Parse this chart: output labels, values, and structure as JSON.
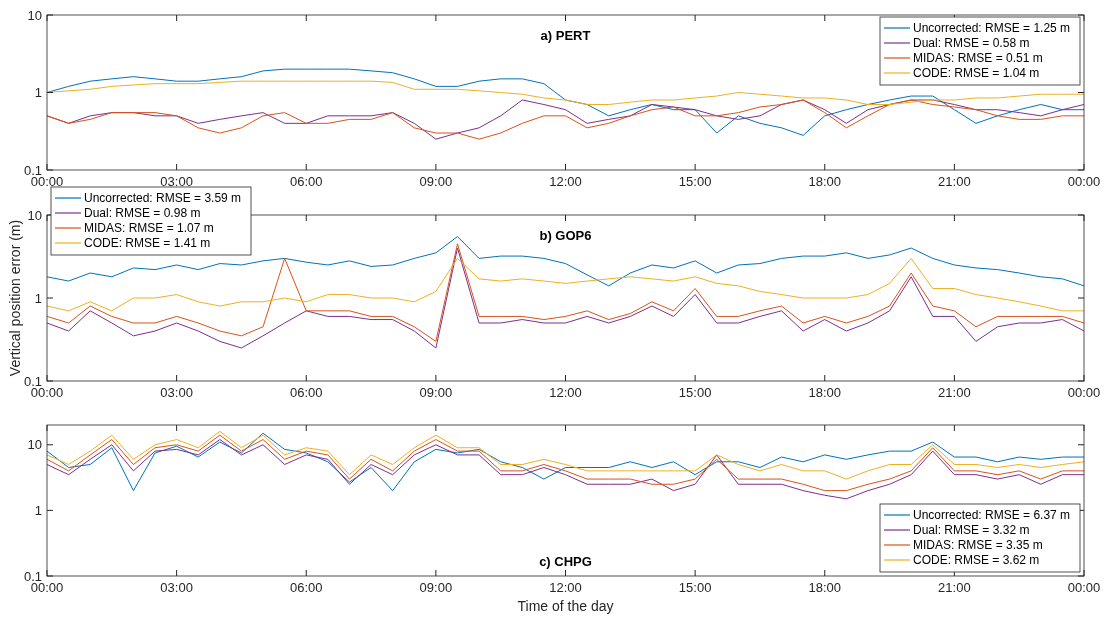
{
  "chart_data": [
    {
      "type": "line",
      "title": "a) PERT",
      "log": true,
      "legend": "top right",
      "xlim": [
        0,
        24
      ],
      "ylim": [
        0.1,
        10
      ],
      "xticks": [
        {
          "value": 0,
          "label": "00:00"
        },
        {
          "value": 3,
          "label": "03:00"
        },
        {
          "value": 6,
          "label": "06:00"
        },
        {
          "value": 9,
          "label": "09:00"
        },
        {
          "value": 12,
          "label": "12:00"
        },
        {
          "value": 15,
          "label": "15:00"
        },
        {
          "value": 18,
          "label": "18:00"
        },
        {
          "value": 21,
          "label": "21:00"
        },
        {
          "value": 24,
          "label": "00:00"
        }
      ],
      "yticks": [
        0.1,
        1,
        10
      ],
      "x": [
        0,
        0.5,
        1,
        1.5,
        2,
        2.5,
        3,
        3.5,
        4,
        4.5,
        5,
        5.5,
        6,
        6.5,
        7,
        7.5,
        8,
        8.5,
        9,
        9.5,
        10,
        10.5,
        11,
        11.5,
        12,
        12.5,
        13,
        13.5,
        14,
        14.5,
        15,
        15.5,
        16,
        16.5,
        17,
        17.5,
        18,
        18.5,
        19,
        19.5,
        20,
        20.5,
        21,
        21.5,
        22,
        22.5,
        23,
        23.5,
        24
      ],
      "series": [
        {
          "name": "Uncorrected: RMSE = 1.25 m",
          "color": "#0072bd",
          "values": [
            1.0,
            1.2,
            1.4,
            1.5,
            1.6,
            1.5,
            1.4,
            1.4,
            1.5,
            1.6,
            1.9,
            2.0,
            2.0,
            2.0,
            2.0,
            1.9,
            1.8,
            1.5,
            1.2,
            1.2,
            1.4,
            1.5,
            1.5,
            1.3,
            0.8,
            0.7,
            0.5,
            0.6,
            0.7,
            0.6,
            0.6,
            0.3,
            0.5,
            0.4,
            0.35,
            0.28,
            0.5,
            0.6,
            0.7,
            0.8,
            0.9,
            0.9,
            0.6,
            0.4,
            0.5,
            0.6,
            0.7,
            0.6,
            0.6
          ]
        },
        {
          "name": "Dual: RMSE = 0.58 m",
          "color": "#7e2f8e",
          "values": [
            0.5,
            0.4,
            0.5,
            0.55,
            0.55,
            0.5,
            0.5,
            0.4,
            0.45,
            0.5,
            0.55,
            0.4,
            0.4,
            0.5,
            0.5,
            0.5,
            0.55,
            0.4,
            0.25,
            0.3,
            0.35,
            0.5,
            0.8,
            0.7,
            0.6,
            0.4,
            0.45,
            0.5,
            0.7,
            0.65,
            0.6,
            0.5,
            0.45,
            0.5,
            0.7,
            0.8,
            0.6,
            0.4,
            0.6,
            0.7,
            0.8,
            0.8,
            0.7,
            0.6,
            0.6,
            0.55,
            0.5,
            0.6,
            0.7
          ]
        },
        {
          "name": "MIDAS: RMSE = 0.51 m",
          "color": "#d95319",
          "values": [
            0.5,
            0.4,
            0.45,
            0.55,
            0.55,
            0.55,
            0.5,
            0.35,
            0.3,
            0.35,
            0.5,
            0.55,
            0.4,
            0.4,
            0.45,
            0.45,
            0.55,
            0.35,
            0.3,
            0.3,
            0.25,
            0.3,
            0.4,
            0.5,
            0.5,
            0.35,
            0.4,
            0.5,
            0.6,
            0.65,
            0.5,
            0.5,
            0.55,
            0.65,
            0.7,
            0.8,
            0.55,
            0.35,
            0.5,
            0.7,
            0.8,
            0.7,
            0.65,
            0.6,
            0.5,
            0.45,
            0.45,
            0.5,
            0.5
          ]
        },
        {
          "name": "CODE: RMSE = 1.04 m",
          "color": "#edb120",
          "values": [
            1.0,
            1.05,
            1.1,
            1.2,
            1.25,
            1.3,
            1.3,
            1.3,
            1.35,
            1.4,
            1.4,
            1.4,
            1.4,
            1.4,
            1.4,
            1.4,
            1.35,
            1.1,
            1.1,
            1.1,
            1.05,
            1.0,
            0.95,
            0.85,
            0.8,
            0.7,
            0.7,
            0.75,
            0.8,
            0.8,
            0.85,
            0.9,
            1.0,
            0.95,
            0.9,
            0.85,
            0.85,
            0.8,
            0.7,
            0.7,
            0.75,
            0.8,
            0.8,
            0.85,
            0.85,
            0.9,
            0.95,
            0.95,
            0.95
          ]
        }
      ]
    },
    {
      "type": "line",
      "title": "b) GOP6",
      "ylabel": "Vertical position error (m)",
      "log": true,
      "legend": "top left",
      "xlim": [
        0,
        24
      ],
      "ylim": [
        0.1,
        10
      ],
      "xticks": [
        {
          "value": 0,
          "label": "00:00"
        },
        {
          "value": 3,
          "label": "03:00"
        },
        {
          "value": 6,
          "label": "06:00"
        },
        {
          "value": 9,
          "label": "09:00"
        },
        {
          "value": 12,
          "label": "12:00"
        },
        {
          "value": 15,
          "label": "15:00"
        },
        {
          "value": 18,
          "label": "18:00"
        },
        {
          "value": 21,
          "label": "21:00"
        },
        {
          "value": 24,
          "label": "00:00"
        }
      ],
      "yticks": [
        0.1,
        1,
        10
      ],
      "x": [
        0,
        0.5,
        1,
        1.5,
        2,
        2.5,
        3,
        3.5,
        4,
        4.5,
        5,
        5.5,
        6,
        6.5,
        7,
        7.5,
        8,
        8.5,
        9,
        9.5,
        10,
        10.5,
        11,
        11.5,
        12,
        12.5,
        13,
        13.5,
        14,
        14.5,
        15,
        15.5,
        16,
        16.5,
        17,
        17.5,
        18,
        18.5,
        19,
        19.5,
        20,
        20.5,
        21,
        21.5,
        22,
        22.5,
        23,
        23.5,
        24
      ],
      "series": [
        {
          "name": "Uncorrected: RMSE = 3.59 m",
          "color": "#0072bd",
          "values": [
            1.8,
            1.6,
            2.0,
            1.8,
            2.3,
            2.2,
            2.5,
            2.2,
            2.6,
            2.5,
            2.8,
            3.0,
            2.7,
            2.5,
            2.8,
            2.4,
            2.5,
            3.0,
            3.5,
            5.5,
            3.0,
            3.2,
            3.2,
            3.0,
            2.6,
            1.9,
            1.4,
            2.0,
            2.5,
            2.3,
            2.8,
            2.0,
            2.5,
            2.6,
            3.0,
            3.2,
            3.2,
            3.5,
            3.0,
            3.3,
            4.0,
            3.0,
            2.5,
            2.3,
            2.2,
            2.0,
            1.8,
            1.7,
            1.4
          ]
        },
        {
          "name": "Dual: RMSE = 0.98 m",
          "color": "#7e2f8e",
          "values": [
            0.5,
            0.4,
            0.7,
            0.5,
            0.35,
            0.4,
            0.5,
            0.4,
            0.3,
            0.25,
            0.35,
            0.5,
            0.7,
            0.6,
            0.6,
            0.55,
            0.55,
            0.4,
            0.25,
            4.0,
            0.5,
            0.5,
            0.55,
            0.5,
            0.5,
            0.6,
            0.5,
            0.6,
            0.8,
            0.6,
            1.1,
            0.5,
            0.5,
            0.6,
            0.7,
            0.4,
            0.55,
            0.4,
            0.5,
            0.7,
            1.8,
            0.6,
            0.6,
            0.3,
            0.45,
            0.5,
            0.5,
            0.55,
            0.4
          ]
        },
        {
          "name": "MIDAS: RMSE = 1.07 m",
          "color": "#d95319",
          "values": [
            0.6,
            0.5,
            0.8,
            0.6,
            0.5,
            0.5,
            0.6,
            0.5,
            0.4,
            0.35,
            0.45,
            3.0,
            0.7,
            0.7,
            0.7,
            0.6,
            0.6,
            0.45,
            0.3,
            4.5,
            0.6,
            0.6,
            0.6,
            0.55,
            0.6,
            0.7,
            0.55,
            0.65,
            0.9,
            0.7,
            1.3,
            0.6,
            0.6,
            0.7,
            0.8,
            0.5,
            0.6,
            0.5,
            0.6,
            0.8,
            2.0,
            0.8,
            0.7,
            0.45,
            0.6,
            0.6,
            0.6,
            0.6,
            0.5
          ]
        },
        {
          "name": "CODE: RMSE = 1.41 m",
          "color": "#edb120",
          "values": [
            0.8,
            0.7,
            0.9,
            0.7,
            1.0,
            1.0,
            1.1,
            0.9,
            0.8,
            0.9,
            0.9,
            1.0,
            0.9,
            1.1,
            1.1,
            1.0,
            1.0,
            0.9,
            1.2,
            3.0,
            1.7,
            1.6,
            1.7,
            1.6,
            1.5,
            1.6,
            1.7,
            1.8,
            1.7,
            1.6,
            1.8,
            1.5,
            1.4,
            1.2,
            1.1,
            1.0,
            1.0,
            1.0,
            1.1,
            1.5,
            3.0,
            1.3,
            1.3,
            1.1,
            1.0,
            0.9,
            0.8,
            0.7,
            0.7
          ]
        }
      ]
    },
    {
      "type": "line",
      "title": "c) CHPG",
      "xlabel": "Time of the day",
      "log": true,
      "legend": "bottom right",
      "xlim": [
        0,
        24
      ],
      "ylim": [
        0.1,
        20
      ],
      "xticks": [
        {
          "value": 0,
          "label": "00:00"
        },
        {
          "value": 3,
          "label": "03:00"
        },
        {
          "value": 6,
          "label": "06:00"
        },
        {
          "value": 9,
          "label": "09:00"
        },
        {
          "value": 12,
          "label": "12:00"
        },
        {
          "value": 15,
          "label": "15:00"
        },
        {
          "value": 18,
          "label": "18:00"
        },
        {
          "value": 21,
          "label": "21:00"
        },
        {
          "value": 24,
          "label": "00:00"
        }
      ],
      "yticks": [
        0.1,
        1,
        10
      ],
      "x": [
        0,
        0.5,
        1,
        1.5,
        2,
        2.5,
        3,
        3.5,
        4,
        4.5,
        5,
        5.5,
        6,
        6.5,
        7,
        7.5,
        8,
        8.5,
        9,
        9.5,
        10,
        10.5,
        11,
        11.5,
        12,
        12.5,
        13,
        13.5,
        14,
        14.5,
        15,
        15.5,
        16,
        16.5,
        17,
        17.5,
        18,
        18.5,
        19,
        19.5,
        20,
        20.5,
        21,
        21.5,
        22,
        22.5,
        23,
        23.5,
        24
      ],
      "series": [
        {
          "name": "Uncorrected: RMSE = 6.37 m",
          "color": "#0072bd",
          "values": [
            8,
            4.5,
            5,
            9,
            2,
            7.5,
            9.5,
            6.5,
            11,
            7.5,
            15,
            8.5,
            7.5,
            5.5,
            2.7,
            4.5,
            2,
            5.5,
            8.5,
            7.5,
            8.5,
            5.5,
            4.5,
            3,
            4.5,
            4.5,
            4.5,
            5.5,
            4.5,
            5.5,
            3.5,
            5.5,
            5.5,
            4.5,
            6.5,
            5.5,
            7,
            6,
            7,
            8,
            8,
            11,
            6.5,
            6.5,
            5.5,
            6.5,
            6,
            6.5,
            6.5
          ]
        },
        {
          "name": "Dual: RMSE = 3.32 m",
          "color": "#7e2f8e",
          "values": [
            5,
            3.5,
            6,
            10,
            4,
            8,
            8.5,
            7,
            12,
            7,
            10,
            5,
            7,
            6,
            2.5,
            5,
            3.5,
            7,
            10,
            7,
            7,
            3.5,
            3.5,
            4.5,
            3.5,
            2.5,
            2.5,
            2.5,
            3,
            2,
            2.5,
            7,
            2.5,
            2.5,
            2.5,
            2,
            1.7,
            1.5,
            2,
            2.5,
            3.5,
            8,
            3.5,
            3.5,
            3,
            3.5,
            2.5,
            3.5,
            3.5
          ]
        },
        {
          "name": "MIDAS: RMSE = 3.35 m",
          "color": "#d95319",
          "values": [
            6,
            4,
            7,
            12,
            5,
            9,
            10,
            8,
            14,
            8,
            12,
            6,
            8,
            7,
            3,
            6,
            4,
            8,
            12,
            8,
            8,
            4,
            4,
            5,
            4,
            3,
            3,
            3,
            2.5,
            2.5,
            3,
            6,
            3,
            3,
            3,
            2.5,
            2,
            2,
            2.5,
            3,
            4,
            9,
            4,
            4,
            3.5,
            4,
            3,
            4,
            4
          ]
        },
        {
          "name": "CODE: RMSE = 3.62 m",
          "color": "#edb120",
          "values": [
            7,
            5,
            8,
            14,
            6,
            10,
            12,
            9,
            16,
            9,
            14,
            7,
            9,
            8,
            3.5,
            7,
            5,
            9,
            14,
            9,
            9,
            5,
            5,
            6,
            5,
            4,
            4,
            4,
            4,
            4,
            4,
            7,
            5,
            4,
            5,
            4,
            4,
            3,
            4,
            5,
            5,
            10,
            5,
            5,
            4.5,
            5,
            4.5,
            5,
            5.5
          ]
        }
      ]
    }
  ]
}
